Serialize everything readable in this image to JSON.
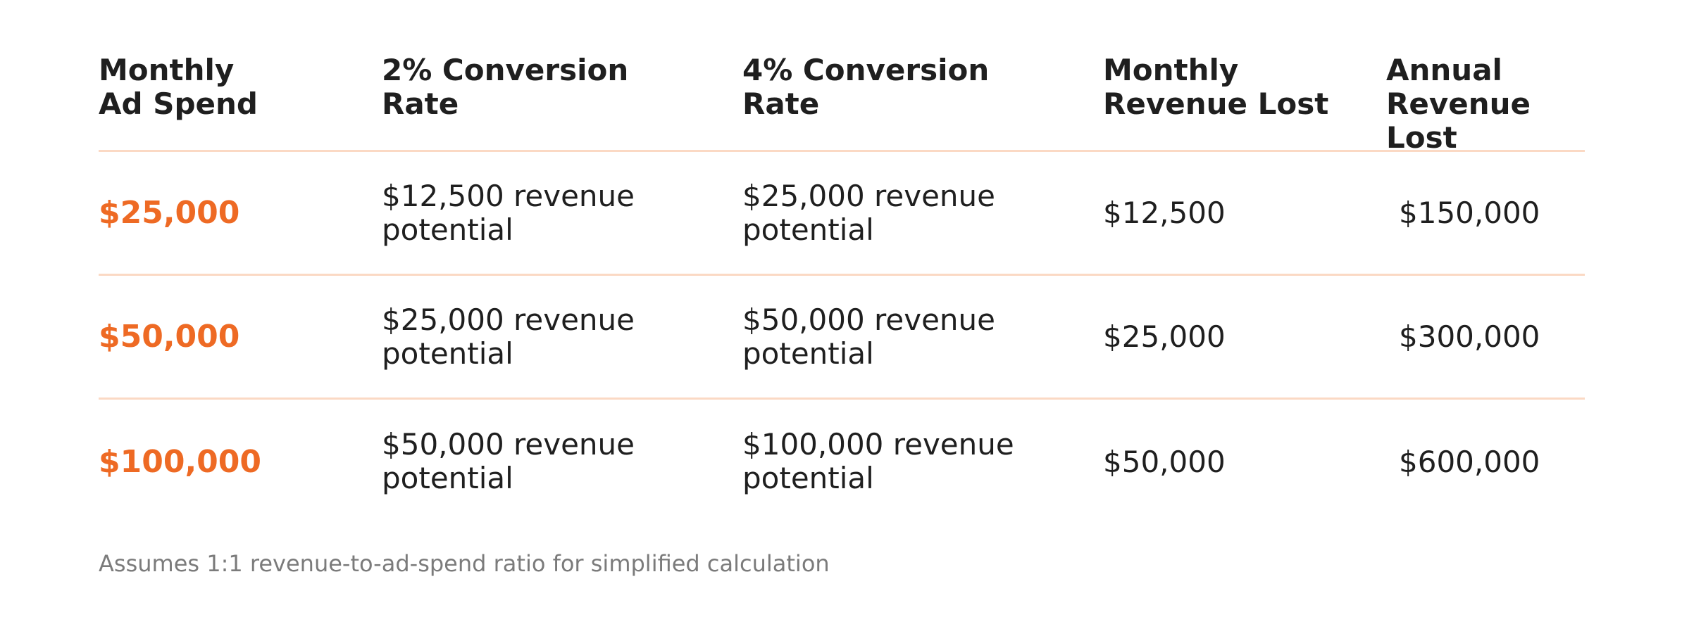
{
  "colors": {
    "accent": "#ee6a24",
    "divider": "#fbd9c4",
    "text": "#1f1f1f",
    "muted": "#7b7b7b"
  },
  "table": {
    "headers": [
      [
        "Monthly",
        "Ad Spend"
      ],
      [
        "2% Conversion",
        "Rate"
      ],
      [
        "4% Conversion",
        "Rate"
      ],
      [
        "Monthly",
        "Revenue Lost"
      ],
      [
        "Annual",
        "Revenue Lost"
      ]
    ],
    "rows": [
      {
        "ad_spend": "$25,000",
        "conv2": [
          "$12,500 revenue",
          "potential"
        ],
        "conv4": [
          "$25,000 revenue",
          "potential"
        ],
        "monthly_lost": "$12,500",
        "annual_lost": "$150,000"
      },
      {
        "ad_spend": "$50,000",
        "conv2": [
          "$25,000 revenue",
          "potential"
        ],
        "conv4": [
          "$50,000 revenue",
          "potential"
        ],
        "monthly_lost": "$25,000",
        "annual_lost": "$300,000"
      },
      {
        "ad_spend": "$100,000",
        "conv2": [
          "$50,000 revenue",
          "potential"
        ],
        "conv4": [
          "$100,000 revenue",
          "potential"
        ],
        "monthly_lost": "$50,000",
        "annual_lost": "$600,000"
      }
    ]
  },
  "footnote": "Assumes 1:1 revenue-to-ad-spend ratio for simplified calculation"
}
